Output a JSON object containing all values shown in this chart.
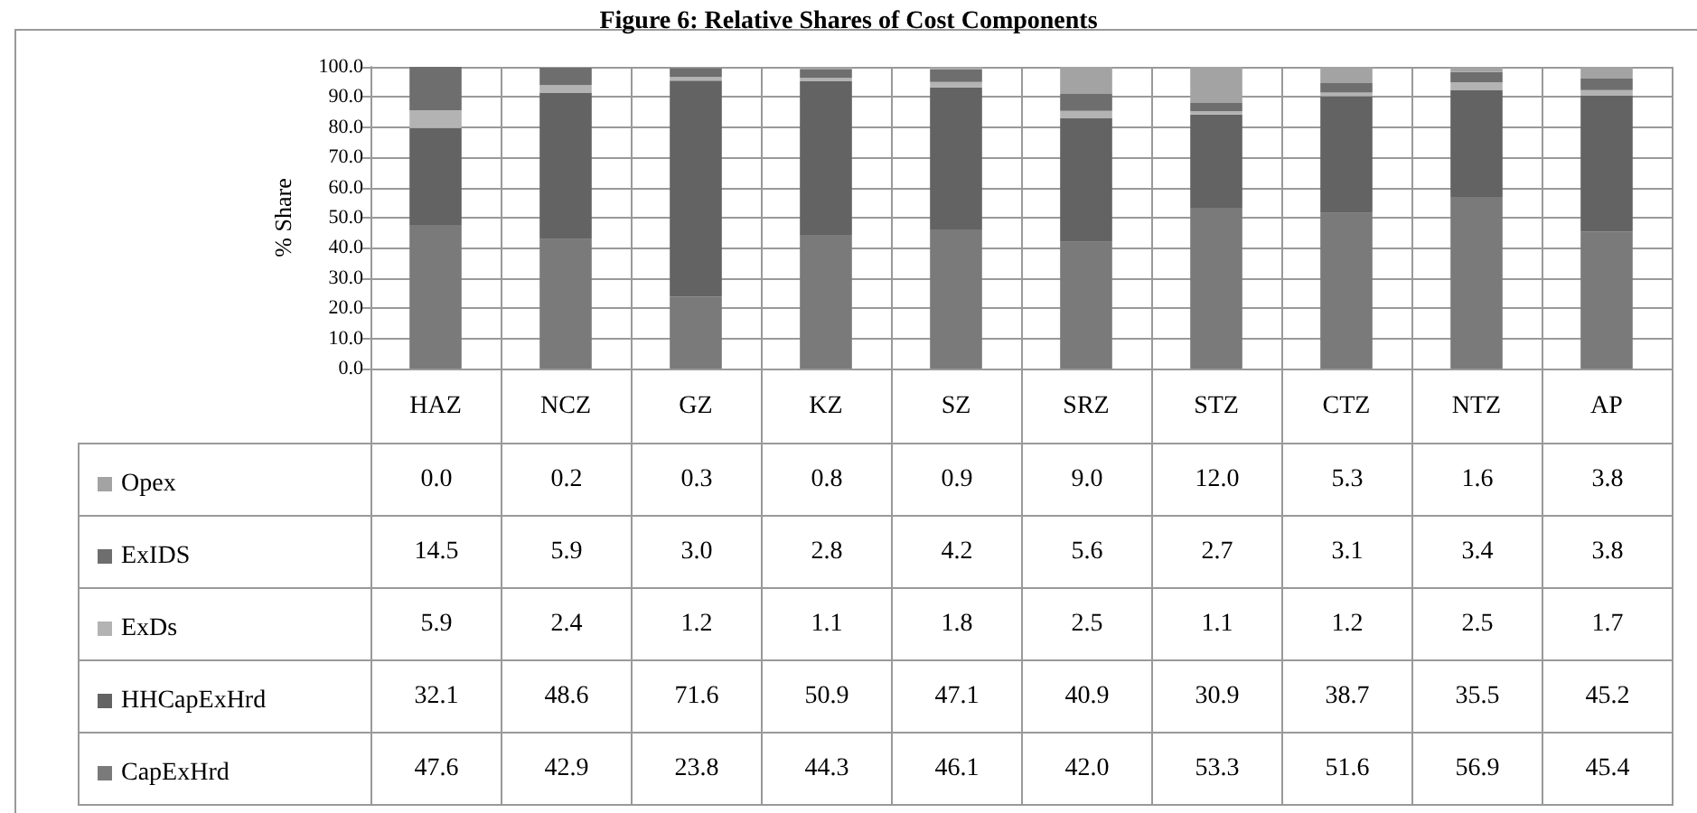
{
  "chart_data": {
    "type": "bar",
    "title": "Figure 6: Relative Shares of Cost Components",
    "ylabel": "% Share",
    "categories": [
      "HAZ",
      "NCZ",
      "GZ",
      "KZ",
      "SZ",
      "SRZ",
      "STZ",
      "CTZ",
      "NTZ",
      "AP"
    ],
    "stacked": true,
    "ylim": [
      0,
      100
    ],
    "yticks": [
      {
        "value": 0,
        "label": "0.0"
      },
      {
        "value": 10,
        "label": "10.0"
      },
      {
        "value": 20,
        "label": "20.0"
      },
      {
        "value": 30,
        "label": "30.0"
      },
      {
        "value": 40,
        "label": "40.0"
      },
      {
        "value": 50,
        "label": "50.0"
      },
      {
        "value": 60,
        "label": "60.0"
      },
      {
        "value": 70,
        "label": "70.0"
      },
      {
        "value": 80,
        "label": "80.0"
      },
      {
        "value": 90,
        "label": "90.0"
      },
      {
        "value": 100,
        "label": "100.0"
      }
    ],
    "grid": true,
    "legend": "bottom left",
    "series": [
      {
        "name": "CapExHrd",
        "color": "#7a7a7a",
        "values": [
          47.6,
          42.9,
          23.8,
          44.3,
          46.1,
          42.0,
          53.3,
          51.6,
          56.9,
          45.4
        ],
        "value_labels": [
          "47.6",
          "42.9",
          "23.8",
          "44.3",
          "46.1",
          "42.0",
          "53.3",
          "51.6",
          "56.9",
          "45.4"
        ]
      },
      {
        "name": "HHCapExHrd",
        "color": "#636363",
        "values": [
          32.1,
          48.6,
          71.6,
          50.9,
          47.1,
          40.9,
          30.9,
          38.7,
          35.5,
          45.2
        ],
        "value_labels": [
          "32.1",
          "48.6",
          "71.6",
          "50.9",
          "47.1",
          "40.9",
          "30.9",
          "38.7",
          "35.5",
          "45.2"
        ]
      },
      {
        "name": "ExDs",
        "color": "#b3b3b3",
        "values": [
          5.9,
          2.4,
          1.2,
          1.1,
          1.8,
          2.5,
          1.1,
          1.2,
          2.5,
          1.7
        ],
        "value_labels": [
          "5.9",
          "2.4",
          "1.2",
          "1.1",
          "1.8",
          "2.5",
          "1.1",
          "1.2",
          "2.5",
          "1.7"
        ]
      },
      {
        "name": "ExIDS",
        "color": "#6e6e6e",
        "values": [
          14.5,
          5.9,
          3.0,
          2.8,
          4.2,
          5.6,
          2.7,
          3.1,
          3.4,
          3.8
        ],
        "value_labels": [
          "14.5",
          "5.9",
          "3.0",
          "2.8",
          "4.2",
          "5.6",
          "2.7",
          "3.1",
          "3.4",
          "3.8"
        ]
      },
      {
        "name": "Opex",
        "color": "#a3a3a3",
        "values": [
          0.0,
          0.2,
          0.3,
          0.8,
          0.9,
          9.0,
          12.0,
          5.3,
          1.6,
          3.8
        ],
        "value_labels": [
          "0.0",
          "0.2",
          "0.3",
          "0.8",
          "0.9",
          "9.0",
          "12.0",
          "5.3",
          "1.6",
          "3.8"
        ]
      }
    ]
  }
}
